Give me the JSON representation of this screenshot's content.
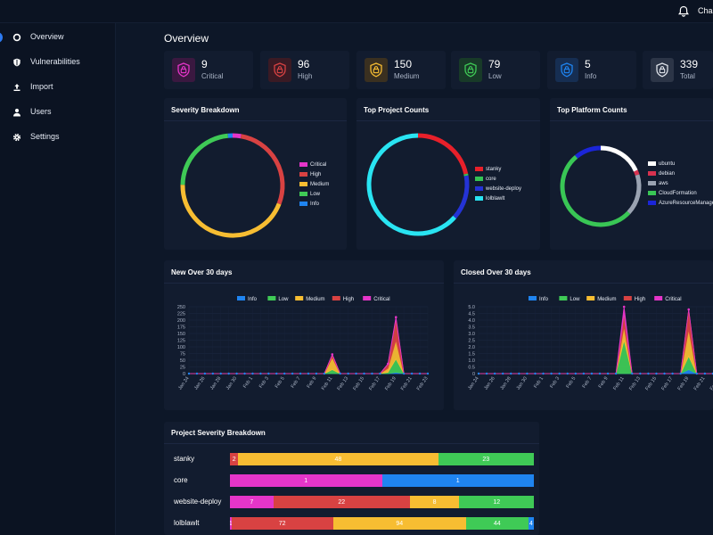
{
  "header": {
    "user": "Chas"
  },
  "sidebar": {
    "items": [
      {
        "label": "Overview",
        "active": true,
        "icon": "overview-icon"
      },
      {
        "label": "Vulnerabilities",
        "active": false,
        "icon": "shield-icon"
      },
      {
        "label": "Import",
        "active": false,
        "icon": "upload-icon"
      },
      {
        "label": "Users",
        "active": false,
        "icon": "user-icon"
      },
      {
        "label": "Settings",
        "active": false,
        "icon": "gear-icon"
      }
    ]
  },
  "page": {
    "title": "Overview"
  },
  "colors": {
    "critical": "#e535c9",
    "high": "#d84242",
    "medium": "#f7bd32",
    "low": "#3fca56",
    "info": "#1f84f0",
    "total": "#dfe3ea",
    "accent": "#2d7bf3"
  },
  "stats": [
    {
      "value": "9",
      "label": "Critical",
      "color": "#e535c9",
      "bg": "#3a1840"
    },
    {
      "value": "96",
      "label": "High",
      "color": "#d84242",
      "bg": "#3a1a24"
    },
    {
      "value": "150",
      "label": "Medium",
      "color": "#f7bd32",
      "bg": "#3a3020"
    },
    {
      "value": "79",
      "label": "Low",
      "color": "#3fca56",
      "bg": "#183a28"
    },
    {
      "value": "5",
      "label": "Info",
      "color": "#1f84f0",
      "bg": "#162e52"
    },
    {
      "value": "339",
      "label": "Total",
      "color": "#dfe3ea",
      "bg": "#2c3547"
    }
  ],
  "chart_data": [
    {
      "type": "pie",
      "title": "Severity Breakdown",
      "categories": [
        "Critical",
        "High",
        "Medium",
        "Low",
        "Info"
      ],
      "values": [
        9,
        96,
        150,
        79,
        5
      ],
      "colors": [
        "#e535c9",
        "#d84242",
        "#f7bd32",
        "#3fca56",
        "#1f84f0"
      ],
      "legend": "right"
    },
    {
      "type": "pie",
      "title": "Top Project Counts",
      "categories": [
        "stanky",
        "core",
        "website-deploy",
        "lolblawlt"
      ],
      "values": [
        73,
        2,
        49,
        215
      ],
      "colors": [
        "#e8202a",
        "#35c454",
        "#2433d6",
        "#29e4f2"
      ],
      "legend": "right"
    },
    {
      "type": "pie",
      "title": "Top Platform Counts",
      "categories": [
        "ubuntu",
        "debian",
        "aws",
        "CloudFormation",
        "AzureResourceManager"
      ],
      "values": [
        60,
        6,
        55,
        170,
        36
      ],
      "colors": [
        "#ffffff",
        "#d8324f",
        "#9aa3b2",
        "#39c655",
        "#1b25d8"
      ],
      "legend": "right"
    },
    {
      "type": "area",
      "title": "New Over 30 days",
      "x": [
        "Jan 24",
        "Jan 25",
        "Jan 26",
        "Jan 27",
        "Jan 28",
        "Jan 29",
        "Jan 30",
        "Jan 31",
        "Feb 1",
        "Feb 2",
        "Feb 3",
        "Feb 4",
        "Feb 5",
        "Feb 6",
        "Feb 7",
        "Feb 8",
        "Feb 9",
        "Feb 10",
        "Feb 11",
        "Feb 12",
        "Feb 13",
        "Feb 14",
        "Feb 15",
        "Feb 16",
        "Feb 17",
        "Feb 18",
        "Feb 19",
        "Feb 20",
        "Feb 21",
        "Feb 22",
        "Feb 23"
      ],
      "xticks": [
        "Jan 24",
        "Jan 26",
        "Jan 28",
        "Jan 30",
        "Feb 1",
        "Feb 3",
        "Feb 5",
        "Feb 7",
        "Feb 9",
        "Feb 11",
        "Feb 13",
        "Feb 15",
        "Feb 17",
        "Feb 19",
        "Feb 21",
        "Feb 23"
      ],
      "yticks": [
        "0",
        "25",
        "50",
        "75",
        "100",
        "125",
        "150",
        "175",
        "200",
        "225",
        "250"
      ],
      "ylim": [
        0,
        250
      ],
      "legend": "top",
      "series": [
        {
          "name": "Info",
          "color": "#1f84f0",
          "values": [
            0,
            0,
            0,
            0,
            0,
            0,
            0,
            0,
            0,
            0,
            0,
            0,
            0,
            0,
            0,
            0,
            0,
            0,
            0,
            0,
            0,
            0,
            0,
            0,
            0,
            0,
            5,
            0,
            0,
            0,
            0
          ]
        },
        {
          "name": "Low",
          "color": "#3fca56",
          "values": [
            0,
            0,
            0,
            0,
            0,
            0,
            0,
            0,
            0,
            0,
            0,
            0,
            0,
            0,
            0,
            0,
            0,
            0,
            15,
            0,
            0,
            0,
            0,
            0,
            0,
            5,
            50,
            0,
            0,
            0,
            0
          ]
        },
        {
          "name": "Medium",
          "color": "#f7bd32",
          "values": [
            0,
            0,
            0,
            0,
            0,
            0,
            0,
            0,
            0,
            0,
            0,
            0,
            0,
            0,
            0,
            0,
            0,
            0,
            45,
            0,
            0,
            0,
            0,
            0,
            0,
            15,
            70,
            0,
            0,
            0,
            0
          ]
        },
        {
          "name": "High",
          "color": "#d84242",
          "values": [
            0,
            0,
            0,
            0,
            0,
            0,
            0,
            0,
            0,
            0,
            0,
            0,
            0,
            0,
            0,
            0,
            0,
            0,
            10,
            0,
            0,
            0,
            0,
            0,
            0,
            15,
            80,
            0,
            0,
            0,
            0
          ]
        },
        {
          "name": "Critical",
          "color": "#e535c9",
          "values": [
            0,
            0,
            0,
            0,
            0,
            0,
            0,
            0,
            0,
            0,
            0,
            0,
            0,
            0,
            0,
            0,
            0,
            0,
            2,
            0,
            0,
            0,
            0,
            0,
            0,
            2,
            6,
            0,
            0,
            0,
            0
          ]
        }
      ]
    },
    {
      "type": "area",
      "title": "Closed Over 30 days",
      "x": [
        "Jan 24",
        "Jan 25",
        "Jan 26",
        "Jan 27",
        "Jan 28",
        "Jan 29",
        "Jan 30",
        "Jan 31",
        "Feb 1",
        "Feb 2",
        "Feb 3",
        "Feb 4",
        "Feb 5",
        "Feb 6",
        "Feb 7",
        "Feb 8",
        "Feb 9",
        "Feb 10",
        "Feb 11",
        "Feb 12",
        "Feb 13",
        "Feb 14",
        "Feb 15",
        "Feb 16",
        "Feb 17",
        "Feb 18",
        "Feb 19",
        "Feb 20",
        "Feb 21",
        "Feb 22",
        "Feb 23"
      ],
      "xticks": [
        "Jan 24",
        "Jan 26",
        "Jan 28",
        "Jan 30",
        "Feb 1",
        "Feb 3",
        "Feb 5",
        "Feb 7",
        "Feb 9",
        "Feb 11",
        "Feb 13",
        "Feb 15",
        "Feb 17",
        "Feb 19",
        "Feb 21",
        "Feb 23"
      ],
      "yticks": [
        "0",
        "0.5",
        "1.0",
        "1.5",
        "2.0",
        "2.5",
        "3.0",
        "3.5",
        "4.0",
        "4.5",
        "5.0"
      ],
      "ylim": [
        0,
        5
      ],
      "legend": "top",
      "series": [
        {
          "name": "Info",
          "color": "#1f84f0",
          "values": [
            0,
            0,
            0,
            0,
            0,
            0,
            0,
            0,
            0,
            0,
            0,
            0,
            0,
            0,
            0,
            0,
            0,
            0,
            0,
            0,
            0,
            0,
            0,
            0,
            0,
            0,
            0.3,
            0,
            0,
            0,
            0
          ]
        },
        {
          "name": "Low",
          "color": "#3fca56",
          "values": [
            0,
            0,
            0,
            0,
            0,
            0,
            0,
            0,
            0,
            0,
            0,
            0,
            0,
            0,
            0,
            0,
            0,
            0,
            2.5,
            0,
            0,
            0,
            0,
            0,
            0,
            0,
            1.0,
            0,
            0,
            0,
            0
          ]
        },
        {
          "name": "Medium",
          "color": "#f7bd32",
          "values": [
            0,
            0,
            0,
            0,
            0,
            0,
            0,
            0,
            0,
            0,
            0,
            0,
            0,
            0,
            0,
            0,
            0,
            0,
            1.0,
            0,
            0,
            0,
            0,
            0,
            0,
            0,
            2.0,
            0,
            0,
            0,
            0
          ]
        },
        {
          "name": "High",
          "color": "#d84242",
          "values": [
            0,
            0,
            0,
            0,
            0,
            0,
            0,
            0,
            0,
            0,
            0,
            0,
            0,
            0,
            0,
            0,
            0,
            0,
            1.0,
            0,
            0,
            0,
            0,
            0,
            0,
            0,
            1.5,
            0,
            0,
            0,
            0
          ]
        },
        {
          "name": "Critical",
          "color": "#e535c9",
          "values": [
            0,
            0,
            0,
            0,
            0,
            0,
            0,
            0,
            0,
            0,
            0,
            0,
            0,
            0,
            0,
            0,
            0,
            0,
            0.5,
            0,
            0,
            0,
            0,
            0,
            0,
            0,
            0,
            0,
            0,
            0,
            0
          ]
        }
      ]
    },
    {
      "type": "bar",
      "title": "Project Severity Breakdown",
      "categories": [
        "stanky",
        "core",
        "website-deploy",
        "lolblawlt"
      ],
      "series": [
        {
          "name": "Critical",
          "color": "#e535c9",
          "values": [
            0,
            1,
            7,
            1
          ]
        },
        {
          "name": "High",
          "color": "#d84242",
          "values": [
            2,
            0,
            22,
            72
          ]
        },
        {
          "name": "Medium",
          "color": "#f7bd32",
          "values": [
            48,
            0,
            8,
            94
          ]
        },
        {
          "name": "Low",
          "color": "#3fca56",
          "values": [
            23,
            0,
            12,
            44
          ]
        },
        {
          "name": "Info",
          "color": "#1f84f0",
          "values": [
            0,
            1,
            0,
            4
          ]
        }
      ]
    }
  ]
}
